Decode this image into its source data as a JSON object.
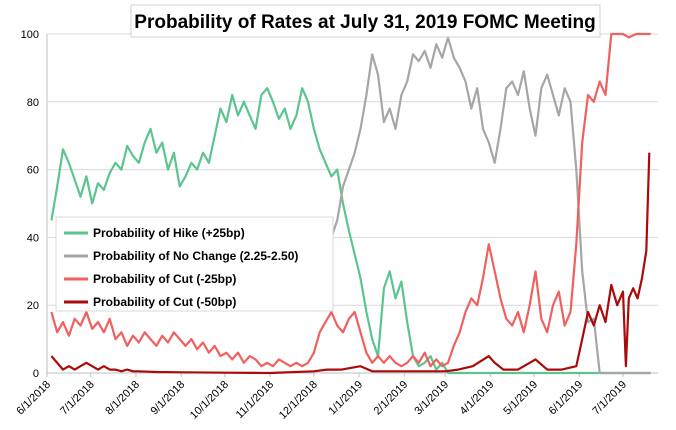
{
  "chart_data": {
    "type": "line",
    "title": "Probability of Rates at July 31, 2019 FOMC Meeting",
    "xlabel": "",
    "ylabel": "",
    "ylim": [
      0,
      100
    ],
    "yticks": [
      0,
      20,
      40,
      60,
      80,
      100
    ],
    "xlim": [
      "2018-06-01",
      "2019-07-25"
    ],
    "xticks": [
      "6/1/2018",
      "7/1/2018",
      "8/1/2018",
      "9/1/2018",
      "10/1/2018",
      "11/1/2018",
      "12/1/2018",
      "1/1/2019",
      "2/1/2019",
      "3/1/2019",
      "4/1/2019",
      "5/1/2019",
      "6/1/2019",
      "7/1/2019"
    ],
    "grid": "horizontal",
    "legend_position": "lower-left",
    "series": [
      {
        "name": "Probability of Hike (+25bp)",
        "color": "#5cc48e",
        "points": [
          [
            "2018-06-04",
            45
          ],
          [
            "2018-06-08",
            55
          ],
          [
            "2018-06-12",
            66
          ],
          [
            "2018-06-16",
            62
          ],
          [
            "2018-06-20",
            57
          ],
          [
            "2018-06-24",
            52
          ],
          [
            "2018-06-28",
            58
          ],
          [
            "2018-07-02",
            50
          ],
          [
            "2018-07-06",
            56
          ],
          [
            "2018-07-10",
            54
          ],
          [
            "2018-07-14",
            59
          ],
          [
            "2018-07-18",
            62
          ],
          [
            "2018-07-22",
            60
          ],
          [
            "2018-07-26",
            67
          ],
          [
            "2018-07-30",
            64
          ],
          [
            "2018-08-03",
            62
          ],
          [
            "2018-08-07",
            68
          ],
          [
            "2018-08-11",
            72
          ],
          [
            "2018-08-15",
            65
          ],
          [
            "2018-08-19",
            68
          ],
          [
            "2018-08-23",
            60
          ],
          [
            "2018-08-27",
            65
          ],
          [
            "2018-08-31",
            55
          ],
          [
            "2018-09-04",
            58
          ],
          [
            "2018-09-08",
            62
          ],
          [
            "2018-09-12",
            60
          ],
          [
            "2018-09-16",
            65
          ],
          [
            "2018-09-20",
            62
          ],
          [
            "2018-09-24",
            70
          ],
          [
            "2018-09-28",
            78
          ],
          [
            "2018-10-02",
            74
          ],
          [
            "2018-10-06",
            82
          ],
          [
            "2018-10-10",
            76
          ],
          [
            "2018-10-14",
            80
          ],
          [
            "2018-10-18",
            76
          ],
          [
            "2018-10-22",
            72
          ],
          [
            "2018-10-26",
            82
          ],
          [
            "2018-10-30",
            84
          ],
          [
            "2018-11-03",
            80
          ],
          [
            "2018-11-07",
            75
          ],
          [
            "2018-11-11",
            78
          ],
          [
            "2018-11-15",
            72
          ],
          [
            "2018-11-19",
            76
          ],
          [
            "2018-11-23",
            84
          ],
          [
            "2018-11-27",
            80
          ],
          [
            "2018-12-01",
            72
          ],
          [
            "2018-12-05",
            66
          ],
          [
            "2018-12-09",
            62
          ],
          [
            "2018-12-13",
            58
          ],
          [
            "2018-12-17",
            60
          ],
          [
            "2018-12-21",
            50
          ],
          [
            "2018-12-25",
            42
          ],
          [
            "2018-12-29",
            35
          ],
          [
            "2019-01-02",
            28
          ],
          [
            "2019-01-06",
            18
          ],
          [
            "2019-01-10",
            10
          ],
          [
            "2019-01-14",
            5
          ],
          [
            "2019-01-18",
            25
          ],
          [
            "2019-01-22",
            30
          ],
          [
            "2019-01-26",
            22
          ],
          [
            "2019-01-30",
            27
          ],
          [
            "2019-02-03",
            15
          ],
          [
            "2019-02-07",
            5
          ],
          [
            "2019-02-11",
            2
          ],
          [
            "2019-02-15",
            3
          ],
          [
            "2019-02-19",
            5
          ],
          [
            "2019-02-23",
            1
          ],
          [
            "2019-02-27",
            3
          ],
          [
            "2019-03-03",
            0
          ],
          [
            "2019-03-10",
            0
          ],
          [
            "2019-04-01",
            0
          ],
          [
            "2019-05-01",
            0
          ],
          [
            "2019-06-01",
            0
          ],
          [
            "2019-07-20",
            0
          ]
        ]
      },
      {
        "name": "Probability of No Change (2.25-2.50)",
        "color": "#a6a6a6",
        "points": [
          [
            "2018-12-01",
            40
          ],
          [
            "2018-12-05",
            45
          ],
          [
            "2018-12-09",
            42
          ],
          [
            "2018-12-13",
            40
          ],
          [
            "2018-12-17",
            45
          ],
          [
            "2018-12-21",
            55
          ],
          [
            "2018-12-25",
            60
          ],
          [
            "2018-12-29",
            65
          ],
          [
            "2019-01-02",
            72
          ],
          [
            "2019-01-06",
            82
          ],
          [
            "2019-01-10",
            94
          ],
          [
            "2019-01-14",
            88
          ],
          [
            "2019-01-18",
            74
          ],
          [
            "2019-01-22",
            78
          ],
          [
            "2019-01-26",
            72
          ],
          [
            "2019-01-30",
            82
          ],
          [
            "2019-02-03",
            86
          ],
          [
            "2019-02-07",
            94
          ],
          [
            "2019-02-11",
            92
          ],
          [
            "2019-02-15",
            95
          ],
          [
            "2019-02-19",
            90
          ],
          [
            "2019-02-23",
            97
          ],
          [
            "2019-02-27",
            93
          ],
          [
            "2019-03-03",
            99
          ],
          [
            "2019-03-07",
            93
          ],
          [
            "2019-03-11",
            90
          ],
          [
            "2019-03-15",
            86
          ],
          [
            "2019-03-19",
            78
          ],
          [
            "2019-03-23",
            84
          ],
          [
            "2019-03-27",
            72
          ],
          [
            "2019-03-31",
            68
          ],
          [
            "2019-04-04",
            62
          ],
          [
            "2019-04-08",
            72
          ],
          [
            "2019-04-12",
            84
          ],
          [
            "2019-04-16",
            86
          ],
          [
            "2019-04-20",
            82
          ],
          [
            "2019-04-24",
            89
          ],
          [
            "2019-04-28",
            78
          ],
          [
            "2019-05-02",
            70
          ],
          [
            "2019-05-06",
            84
          ],
          [
            "2019-05-10",
            88
          ],
          [
            "2019-05-14",
            82
          ],
          [
            "2019-05-18",
            76
          ],
          [
            "2019-05-22",
            84
          ],
          [
            "2019-05-26",
            80
          ],
          [
            "2019-05-30",
            60
          ],
          [
            "2019-06-03",
            30
          ],
          [
            "2019-06-07",
            15
          ],
          [
            "2019-06-11",
            16
          ],
          [
            "2019-06-15",
            0
          ],
          [
            "2019-07-20",
            0
          ]
        ]
      },
      {
        "name": "Probability of Cut (-25bp)",
        "color": "#f0605e",
        "points": [
          [
            "2018-06-04",
            18
          ],
          [
            "2018-06-08",
            12
          ],
          [
            "2018-06-12",
            15
          ],
          [
            "2018-06-16",
            11
          ],
          [
            "2018-06-20",
            16
          ],
          [
            "2018-06-24",
            14
          ],
          [
            "2018-06-28",
            18
          ],
          [
            "2018-07-02",
            13
          ],
          [
            "2018-07-06",
            15
          ],
          [
            "2018-07-10",
            12
          ],
          [
            "2018-07-14",
            16
          ],
          [
            "2018-07-18",
            10
          ],
          [
            "2018-07-22",
            12
          ],
          [
            "2018-07-26",
            8
          ],
          [
            "2018-07-30",
            11
          ],
          [
            "2018-08-03",
            9
          ],
          [
            "2018-08-07",
            12
          ],
          [
            "2018-08-11",
            10
          ],
          [
            "2018-08-15",
            8
          ],
          [
            "2018-08-19",
            11
          ],
          [
            "2018-08-23",
            9
          ],
          [
            "2018-08-27",
            12
          ],
          [
            "2018-08-31",
            10
          ],
          [
            "2018-09-04",
            8
          ],
          [
            "2018-09-08",
            10
          ],
          [
            "2018-09-12",
            7
          ],
          [
            "2018-09-16",
            9
          ],
          [
            "2018-09-20",
            6
          ],
          [
            "2018-09-24",
            8
          ],
          [
            "2018-09-28",
            5
          ],
          [
            "2018-10-02",
            6
          ],
          [
            "2018-10-06",
            4
          ],
          [
            "2018-10-10",
            6
          ],
          [
            "2018-10-14",
            3
          ],
          [
            "2018-10-18",
            5
          ],
          [
            "2018-10-22",
            4
          ],
          [
            "2018-10-26",
            2
          ],
          [
            "2018-10-30",
            3
          ],
          [
            "2018-11-03",
            2
          ],
          [
            "2018-11-07",
            4
          ],
          [
            "2018-11-11",
            3
          ],
          [
            "2018-11-15",
            2
          ],
          [
            "2018-11-19",
            3
          ],
          [
            "2018-11-23",
            2
          ],
          [
            "2018-11-27",
            3
          ],
          [
            "2018-12-01",
            6
          ],
          [
            "2018-12-05",
            12
          ],
          [
            "2018-12-09",
            15
          ],
          [
            "2018-12-13",
            18
          ],
          [
            "2018-12-17",
            14
          ],
          [
            "2018-12-21",
            12
          ],
          [
            "2018-12-25",
            16
          ],
          [
            "2018-12-29",
            18
          ],
          [
            "2019-01-02",
            12
          ],
          [
            "2019-01-06",
            6
          ],
          [
            "2019-01-10",
            3
          ],
          [
            "2019-01-14",
            5
          ],
          [
            "2019-01-18",
            3
          ],
          [
            "2019-01-22",
            5
          ],
          [
            "2019-01-26",
            3
          ],
          [
            "2019-01-30",
            2
          ],
          [
            "2019-02-03",
            3
          ],
          [
            "2019-02-07",
            5
          ],
          [
            "2019-02-11",
            3
          ],
          [
            "2019-02-15",
            6
          ],
          [
            "2019-02-19",
            2
          ],
          [
            "2019-02-23",
            4
          ],
          [
            "2019-02-27",
            2
          ],
          [
            "2019-03-03",
            3
          ],
          [
            "2019-03-07",
            8
          ],
          [
            "2019-03-11",
            12
          ],
          [
            "2019-03-15",
            18
          ],
          [
            "2019-03-19",
            22
          ],
          [
            "2019-03-23",
            20
          ],
          [
            "2019-03-27",
            28
          ],
          [
            "2019-03-31",
            38
          ],
          [
            "2019-04-04",
            30
          ],
          [
            "2019-04-08",
            22
          ],
          [
            "2019-04-12",
            16
          ],
          [
            "2019-04-16",
            14
          ],
          [
            "2019-04-20",
            18
          ],
          [
            "2019-04-24",
            12
          ],
          [
            "2019-04-28",
            20
          ],
          [
            "2019-05-02",
            30
          ],
          [
            "2019-05-06",
            16
          ],
          [
            "2019-05-10",
            12
          ],
          [
            "2019-05-14",
            20
          ],
          [
            "2019-05-18",
            24
          ],
          [
            "2019-05-22",
            14
          ],
          [
            "2019-05-26",
            18
          ],
          [
            "2019-05-30",
            38
          ],
          [
            "2019-06-03",
            68
          ],
          [
            "2019-06-07",
            82
          ],
          [
            "2019-06-11",
            80
          ],
          [
            "2019-06-15",
            86
          ],
          [
            "2019-06-19",
            82
          ],
          [
            "2019-06-23",
            100
          ],
          [
            "2019-07-01",
            100
          ],
          [
            "2019-07-05",
            99
          ],
          [
            "2019-07-10",
            100
          ],
          [
            "2019-07-20",
            100
          ]
        ]
      },
      {
        "name": "Probability of Cut (-50bp)",
        "color": "#aa0a0a",
        "points": [
          [
            "2018-06-04",
            5
          ],
          [
            "2018-06-08",
            3
          ],
          [
            "2018-06-12",
            1
          ],
          [
            "2018-06-16",
            2
          ],
          [
            "2018-06-20",
            1
          ],
          [
            "2018-06-24",
            2
          ],
          [
            "2018-06-28",
            3
          ],
          [
            "2018-07-02",
            2
          ],
          [
            "2018-07-06",
            1
          ],
          [
            "2018-07-10",
            2
          ],
          [
            "2018-07-14",
            1
          ],
          [
            "2018-07-18",
            1
          ],
          [
            "2018-07-22",
            0.5
          ],
          [
            "2018-07-26",
            1
          ],
          [
            "2018-07-30",
            0.5
          ],
          [
            "2018-08-03",
            0.5
          ],
          [
            "2018-08-15",
            0.3
          ],
          [
            "2018-09-01",
            0.2
          ],
          [
            "2018-10-01",
            0.1
          ],
          [
            "2018-11-01",
            0
          ],
          [
            "2018-12-01",
            0.5
          ],
          [
            "2018-12-10",
            1
          ],
          [
            "2018-12-20",
            1
          ],
          [
            "2019-01-02",
            2
          ],
          [
            "2019-01-10",
            0.5
          ],
          [
            "2019-01-20",
            0.5
          ],
          [
            "2019-02-01",
            0.5
          ],
          [
            "2019-02-15",
            0.5
          ],
          [
            "2019-03-01",
            0.5
          ],
          [
            "2019-03-10",
            1
          ],
          [
            "2019-03-20",
            2
          ],
          [
            "2019-03-31",
            5
          ],
          [
            "2019-04-04",
            3
          ],
          [
            "2019-04-10",
            1
          ],
          [
            "2019-04-20",
            1
          ],
          [
            "2019-05-02",
            4
          ],
          [
            "2019-05-10",
            1
          ],
          [
            "2019-05-20",
            1
          ],
          [
            "2019-05-30",
            2
          ],
          [
            "2019-06-03",
            10
          ],
          [
            "2019-06-07",
            18
          ],
          [
            "2019-06-11",
            14
          ],
          [
            "2019-06-15",
            20
          ],
          [
            "2019-06-19",
            15
          ],
          [
            "2019-06-23",
            26
          ],
          [
            "2019-06-27",
            20
          ],
          [
            "2019-07-01",
            24
          ],
          [
            "2019-07-03",
            2
          ],
          [
            "2019-07-05",
            22
          ],
          [
            "2019-07-08",
            25
          ],
          [
            "2019-07-11",
            22
          ],
          [
            "2019-07-14",
            28
          ],
          [
            "2019-07-17",
            36
          ],
          [
            "2019-07-19",
            65
          ]
        ]
      }
    ]
  }
}
